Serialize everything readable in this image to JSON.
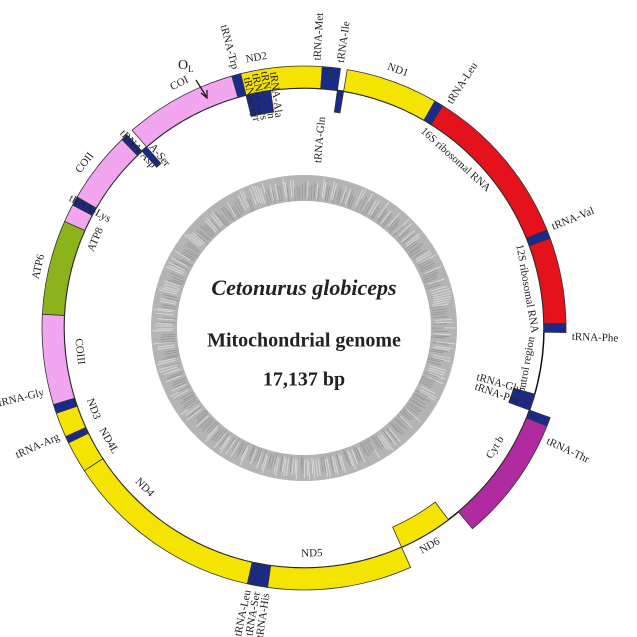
{
  "title": {
    "species": "Cetonurus globiceps",
    "subtitle": "Mitochondrial genome",
    "size": "17,137 bp"
  },
  "origin": {
    "label": "O",
    "subscript": "L"
  },
  "genes": [
    {
      "label": "ND2"
    },
    {
      "label": "tRNA-Met"
    },
    {
      "label": "tRNA-Ile"
    },
    {
      "label": "tRNA-Gln"
    },
    {
      "label": "ND1"
    },
    {
      "label": "tRNA-Leu"
    },
    {
      "label": "16S ribosomal RNA"
    },
    {
      "label": "tRNA-Val"
    },
    {
      "label": "12S ribosomal RNA"
    },
    {
      "label": "tRNA-Phe"
    },
    {
      "label": "control region"
    },
    {
      "label": "tRNA-Glu"
    },
    {
      "label": "tRNA-Pro"
    },
    {
      "label": "tRNA-Thr"
    },
    {
      "label": "Cyt b"
    },
    {
      "label": "ND6"
    },
    {
      "label": "ND5"
    },
    {
      "label": "tRNA-His"
    },
    {
      "label": "tRNA-Ser"
    },
    {
      "label": "tRNA-Leu"
    },
    {
      "label": "ND4"
    },
    {
      "label": "ND4L"
    },
    {
      "label": "tRNA-Arg"
    },
    {
      "label": "ND3"
    },
    {
      "label": "tRNA-Gly"
    },
    {
      "label": "COIII"
    },
    {
      "label": "ATP6"
    },
    {
      "label": "ATP8"
    },
    {
      "label": "tRNA-Lys"
    },
    {
      "label": "COII"
    },
    {
      "label": "tRNA-Asp"
    },
    {
      "label": "tRNA-Ser"
    },
    {
      "label": "COI"
    },
    {
      "label": "tRNA-Tyr"
    },
    {
      "label": "tRNA-Cys"
    },
    {
      "label": "tRNA-Asn"
    },
    {
      "label": "tRNA-Ala"
    },
    {
      "label": "tRNA-Trp"
    }
  ]
}
